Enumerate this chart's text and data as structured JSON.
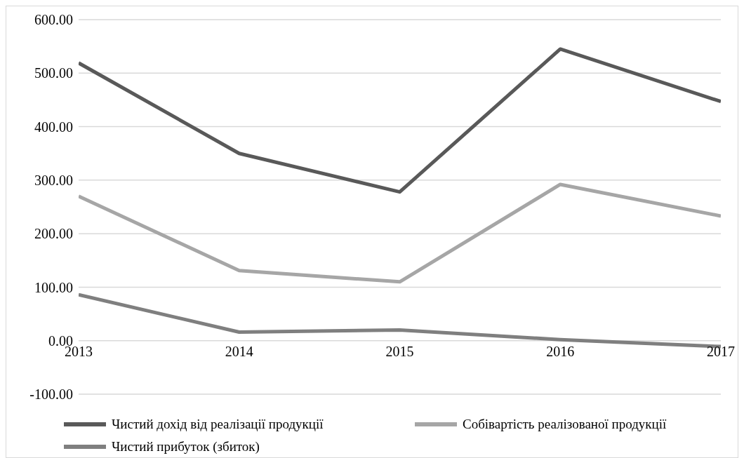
{
  "chart_data": {
    "type": "line",
    "categories": [
      "2013",
      "2014",
      "2015",
      "2016",
      "2017"
    ],
    "series": [
      {
        "name": "Чистий дохід від реалізації продукції",
        "color": "#595959",
        "values": [
          519,
          350,
          278,
          545,
          447
        ]
      },
      {
        "name": "Собівартість реалізованої продукції",
        "color": "#a6a6a6",
        "values": [
          270,
          131,
          110,
          292,
          233
        ]
      },
      {
        "name": "Чистий прибуток (збиток)",
        "color": "#7f7f7f",
        "values": [
          86,
          16,
          20,
          2,
          -11
        ]
      }
    ],
    "ylim": [
      -100,
      600
    ],
    "yticks": [
      {
        "value": -100,
        "label": "-100.00"
      },
      {
        "value": 0,
        "label": "0.00"
      },
      {
        "value": 100,
        "label": "100.00"
      },
      {
        "value": 200,
        "label": "200.00"
      },
      {
        "value": 300,
        "label": "300.00"
      },
      {
        "value": 400,
        "label": "400.00"
      },
      {
        "value": 500,
        "label": "500.00"
      },
      {
        "value": 600,
        "label": "600.00"
      }
    ],
    "grid": "y",
    "legend": "bottom",
    "marker": "none",
    "line_style": "solid"
  }
}
